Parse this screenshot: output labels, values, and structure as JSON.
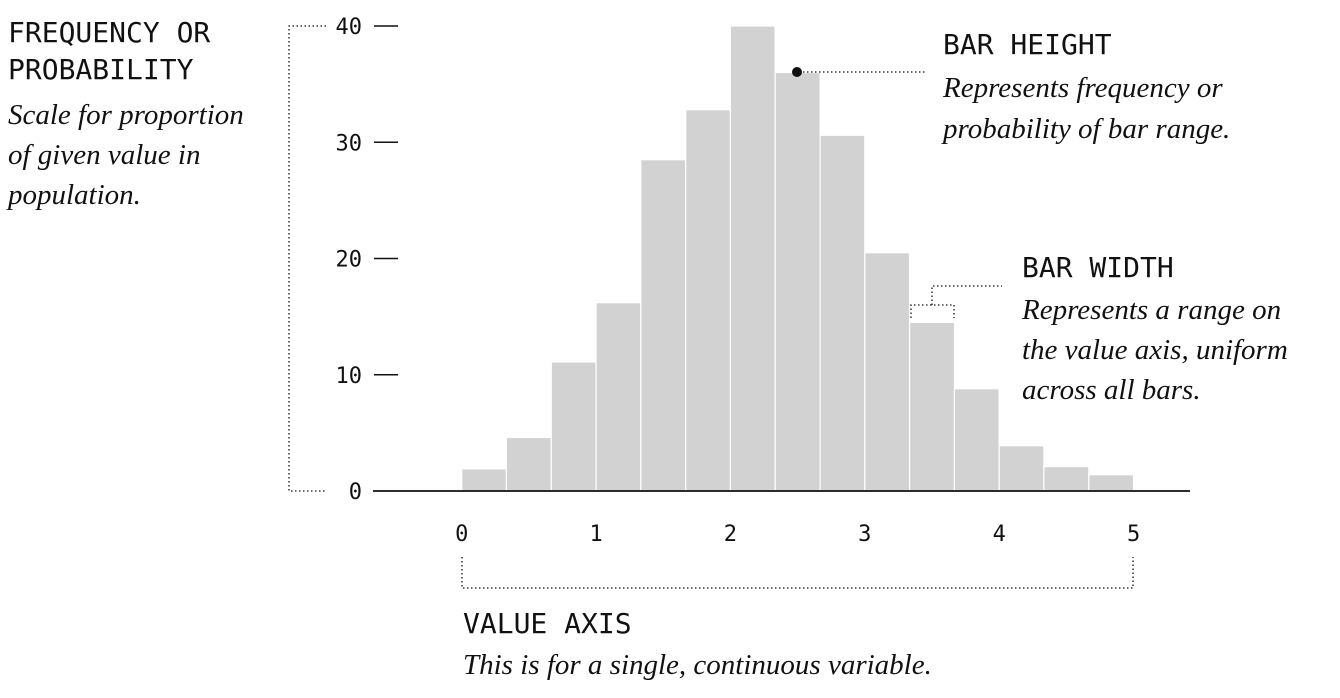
{
  "chart_data": {
    "type": "bar",
    "bins": [
      {
        "x0": 0.0,
        "x1": 0.333,
        "value": 1.9
      },
      {
        "x0": 0.333,
        "x1": 0.667,
        "value": 4.6
      },
      {
        "x0": 0.667,
        "x1": 1.0,
        "value": 11.1
      },
      {
        "x0": 1.0,
        "x1": 1.333,
        "value": 16.2
      },
      {
        "x0": 1.333,
        "x1": 1.667,
        "value": 28.5
      },
      {
        "x0": 1.667,
        "x1": 2.0,
        "value": 32.8
      },
      {
        "x0": 2.0,
        "x1": 2.333,
        "value": 40.0
      },
      {
        "x0": 2.333,
        "x1": 2.667,
        "value": 36.0
      },
      {
        "x0": 2.667,
        "x1": 3.0,
        "value": 30.6
      },
      {
        "x0": 3.0,
        "x1": 3.333,
        "value": 20.5
      },
      {
        "x0": 3.333,
        "x1": 3.667,
        "value": 14.5
      },
      {
        "x0": 3.667,
        "x1": 4.0,
        "value": 8.8
      },
      {
        "x0": 4.0,
        "x1": 4.333,
        "value": 3.9
      },
      {
        "x0": 4.333,
        "x1": 4.667,
        "value": 2.1
      },
      {
        "x0": 4.667,
        "x1": 5.0,
        "value": 1.4
      }
    ],
    "x_ticks": [
      "0",
      "1",
      "2",
      "3",
      "4",
      "5"
    ],
    "y_ticks": [
      "0",
      "10",
      "20",
      "30",
      "40"
    ],
    "xlim": [
      -0.66,
      5.42
    ],
    "ylim": [
      0,
      40
    ],
    "grid": false,
    "colors": {
      "bar": "#d2d2d3",
      "ink": "#111111"
    }
  },
  "annotations": {
    "frequency": {
      "title_lines": [
        "FREQUENCY OR",
        "PROBABILITY"
      ],
      "desc_lines": [
        "Scale for proportion",
        "of given value in",
        "population."
      ]
    },
    "bar_height": {
      "title": "BAR HEIGHT",
      "desc_lines": [
        "Represents frequency or",
        "probability of bar range."
      ]
    },
    "bar_width": {
      "title": "BAR WIDTH",
      "desc_lines": [
        "Represents a range on",
        "the value axis, uniform",
        "across all bars."
      ]
    },
    "value_axis": {
      "title": "VALUE AXIS",
      "desc": "This is for a single, continuous variable."
    }
  }
}
